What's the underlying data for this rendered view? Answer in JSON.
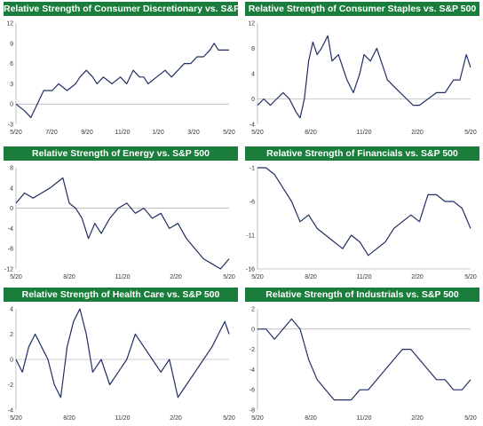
{
  "colors": {
    "title_bar": "#1a7d3c",
    "title_text": "#ffffff",
    "line": "#1f2f63",
    "axis": "#999999"
  },
  "chart_data": [
    {
      "type": "line",
      "title": "Relative Strength of Consumer Discretionary vs. S&P 500",
      "yticks": [
        -3,
        0,
        3,
        6,
        9,
        12
      ],
      "ylim": [
        -3,
        12
      ],
      "xticks": [
        "5/20",
        "7/20",
        "9/20",
        "11/20",
        "1/20",
        "3/20",
        "5/20"
      ],
      "series": [
        {
          "x": [
            0,
            0.04,
            0.07,
            0.1,
            0.13,
            0.17,
            0.2,
            0.24,
            0.28,
            0.3,
            0.33,
            0.36,
            0.38,
            0.41,
            0.45,
            0.49,
            0.52,
            0.55,
            0.58,
            0.6,
            0.62,
            0.66,
            0.7,
            0.73,
            0.76,
            0.79,
            0.82,
            0.85,
            0.88,
            0.91,
            0.93,
            0.95,
            0.97,
            1
          ],
          "y": [
            0,
            -1,
            -2,
            0,
            2,
            2,
            3,
            2,
            3,
            4,
            5,
            4,
            3,
            4,
            3,
            4,
            3,
            5,
            4,
            4,
            3,
            4,
            5,
            4,
            5,
            6,
            6,
            7,
            7,
            8,
            9,
            8,
            8,
            8
          ]
        }
      ]
    },
    {
      "type": "line",
      "title": "Relative Strength of Consumer Staples vs. S&P 500",
      "yticks": [
        -4,
        0,
        4,
        8,
        12
      ],
      "ylim": [
        -4,
        12
      ],
      "xticks": [
        "5/20",
        "8/20",
        "11/20",
        "2/20",
        "5/20"
      ],
      "series": [
        {
          "x": [
            0,
            0.03,
            0.06,
            0.09,
            0.12,
            0.15,
            0.18,
            0.2,
            0.22,
            0.24,
            0.26,
            0.28,
            0.3,
            0.33,
            0.35,
            0.38,
            0.4,
            0.42,
            0.45,
            0.48,
            0.5,
            0.53,
            0.56,
            0.59,
            0.61,
            0.64,
            0.67,
            0.7,
            0.73,
            0.76,
            0.8,
            0.84,
            0.88,
            0.92,
            0.95,
            0.98,
            1
          ],
          "y": [
            -1,
            0,
            -1,
            0,
            1,
            0,
            -2,
            -3,
            0,
            6,
            9,
            7,
            8,
            10,
            6,
            7,
            5,
            3,
            1,
            4,
            7,
            6,
            8,
            5,
            3,
            2,
            1,
            0,
            -1,
            -1,
            0,
            1,
            1,
            3,
            3,
            7,
            5
          ]
        }
      ]
    },
    {
      "type": "line",
      "title": "Relative Strength of Energy vs. S&P 500",
      "yticks": [
        -12,
        -8,
        -4,
        0,
        4,
        8
      ],
      "ylim": [
        -12,
        8
      ],
      "xticks": [
        "5/20",
        "8/20",
        "11/20",
        "2/20",
        "5/20"
      ],
      "series": [
        {
          "x": [
            0,
            0.04,
            0.08,
            0.12,
            0.16,
            0.19,
            0.22,
            0.25,
            0.28,
            0.31,
            0.34,
            0.37,
            0.4,
            0.44,
            0.48,
            0.52,
            0.56,
            0.6,
            0.64,
            0.68,
            0.72,
            0.76,
            0.8,
            0.84,
            0.88,
            0.92,
            0.96,
            1
          ],
          "y": [
            1,
            3,
            2,
            3,
            4,
            5,
            6,
            1,
            0,
            -2,
            -6,
            -3,
            -5,
            -2,
            0,
            1,
            -1,
            0,
            -2,
            -1,
            -4,
            -3,
            -6,
            -8,
            -10,
            -11,
            -12,
            -10
          ]
        }
      ]
    },
    {
      "type": "line",
      "title": "Relative Strength of Financials vs. S&P 500",
      "yticks": [
        -16,
        -11,
        -6,
        -1
      ],
      "ylim": [
        -16,
        -1
      ],
      "xticks": [
        "5/20",
        "8/20",
        "11/20",
        "2/20",
        "5/20"
      ],
      "series": [
        {
          "x": [
            0,
            0.04,
            0.08,
            0.12,
            0.16,
            0.2,
            0.24,
            0.28,
            0.32,
            0.36,
            0.4,
            0.44,
            0.48,
            0.52,
            0.56,
            0.6,
            0.64,
            0.68,
            0.72,
            0.76,
            0.8,
            0.84,
            0.88,
            0.92,
            0.96,
            1
          ],
          "y": [
            -1,
            -1,
            -2,
            -4,
            -6,
            -9,
            -8,
            -10,
            -11,
            -12,
            -13,
            -11,
            -12,
            -14,
            -13,
            -12,
            -10,
            -9,
            -8,
            -9,
            -5,
            -5,
            -6,
            -6,
            -7,
            -10
          ]
        }
      ]
    },
    {
      "type": "line",
      "title": "Relative Strength of Health Care vs. S&P 500",
      "yticks": [
        -4,
        -2,
        0,
        2,
        4
      ],
      "ylim": [
        -4,
        4
      ],
      "xticks": [
        "5/20",
        "8/20",
        "11/20",
        "2/20",
        "5/20"
      ],
      "series": [
        {
          "x": [
            0,
            0.03,
            0.06,
            0.09,
            0.12,
            0.15,
            0.18,
            0.21,
            0.24,
            0.27,
            0.3,
            0.33,
            0.36,
            0.4,
            0.44,
            0.48,
            0.52,
            0.56,
            0.6,
            0.64,
            0.68,
            0.72,
            0.76,
            0.8,
            0.84,
            0.88,
            0.92,
            0.95,
            0.98,
            1
          ],
          "y": [
            0,
            -1,
            1,
            2,
            1,
            0,
            -2,
            -3,
            1,
            3,
            4,
            2,
            -1,
            0,
            -2,
            -1,
            0,
            2,
            1,
            0,
            -1,
            0,
            -3,
            -2,
            -1,
            0,
            1,
            2,
            3,
            2
          ]
        }
      ]
    },
    {
      "type": "line",
      "title": "Relative Strength of Industrials vs. S&P 500",
      "yticks": [
        -8,
        -6,
        -4,
        -2,
        0,
        2
      ],
      "ylim": [
        -8,
        2
      ],
      "xticks": [
        "5/20",
        "8/20",
        "11/20",
        "2/20",
        "5/20"
      ],
      "series": [
        {
          "x": [
            0,
            0.04,
            0.08,
            0.12,
            0.16,
            0.2,
            0.24,
            0.28,
            0.32,
            0.36,
            0.4,
            0.44,
            0.48,
            0.52,
            0.56,
            0.6,
            0.64,
            0.68,
            0.72,
            0.76,
            0.8,
            0.84,
            0.88,
            0.92,
            0.96,
            1
          ],
          "y": [
            0,
            0,
            -1,
            0,
            1,
            0,
            -3,
            -5,
            -6,
            -7,
            -7,
            -7,
            -6,
            -6,
            -5,
            -4,
            -3,
            -2,
            -2,
            -3,
            -4,
            -5,
            -5,
            -6,
            -6,
            -5
          ]
        }
      ]
    }
  ]
}
